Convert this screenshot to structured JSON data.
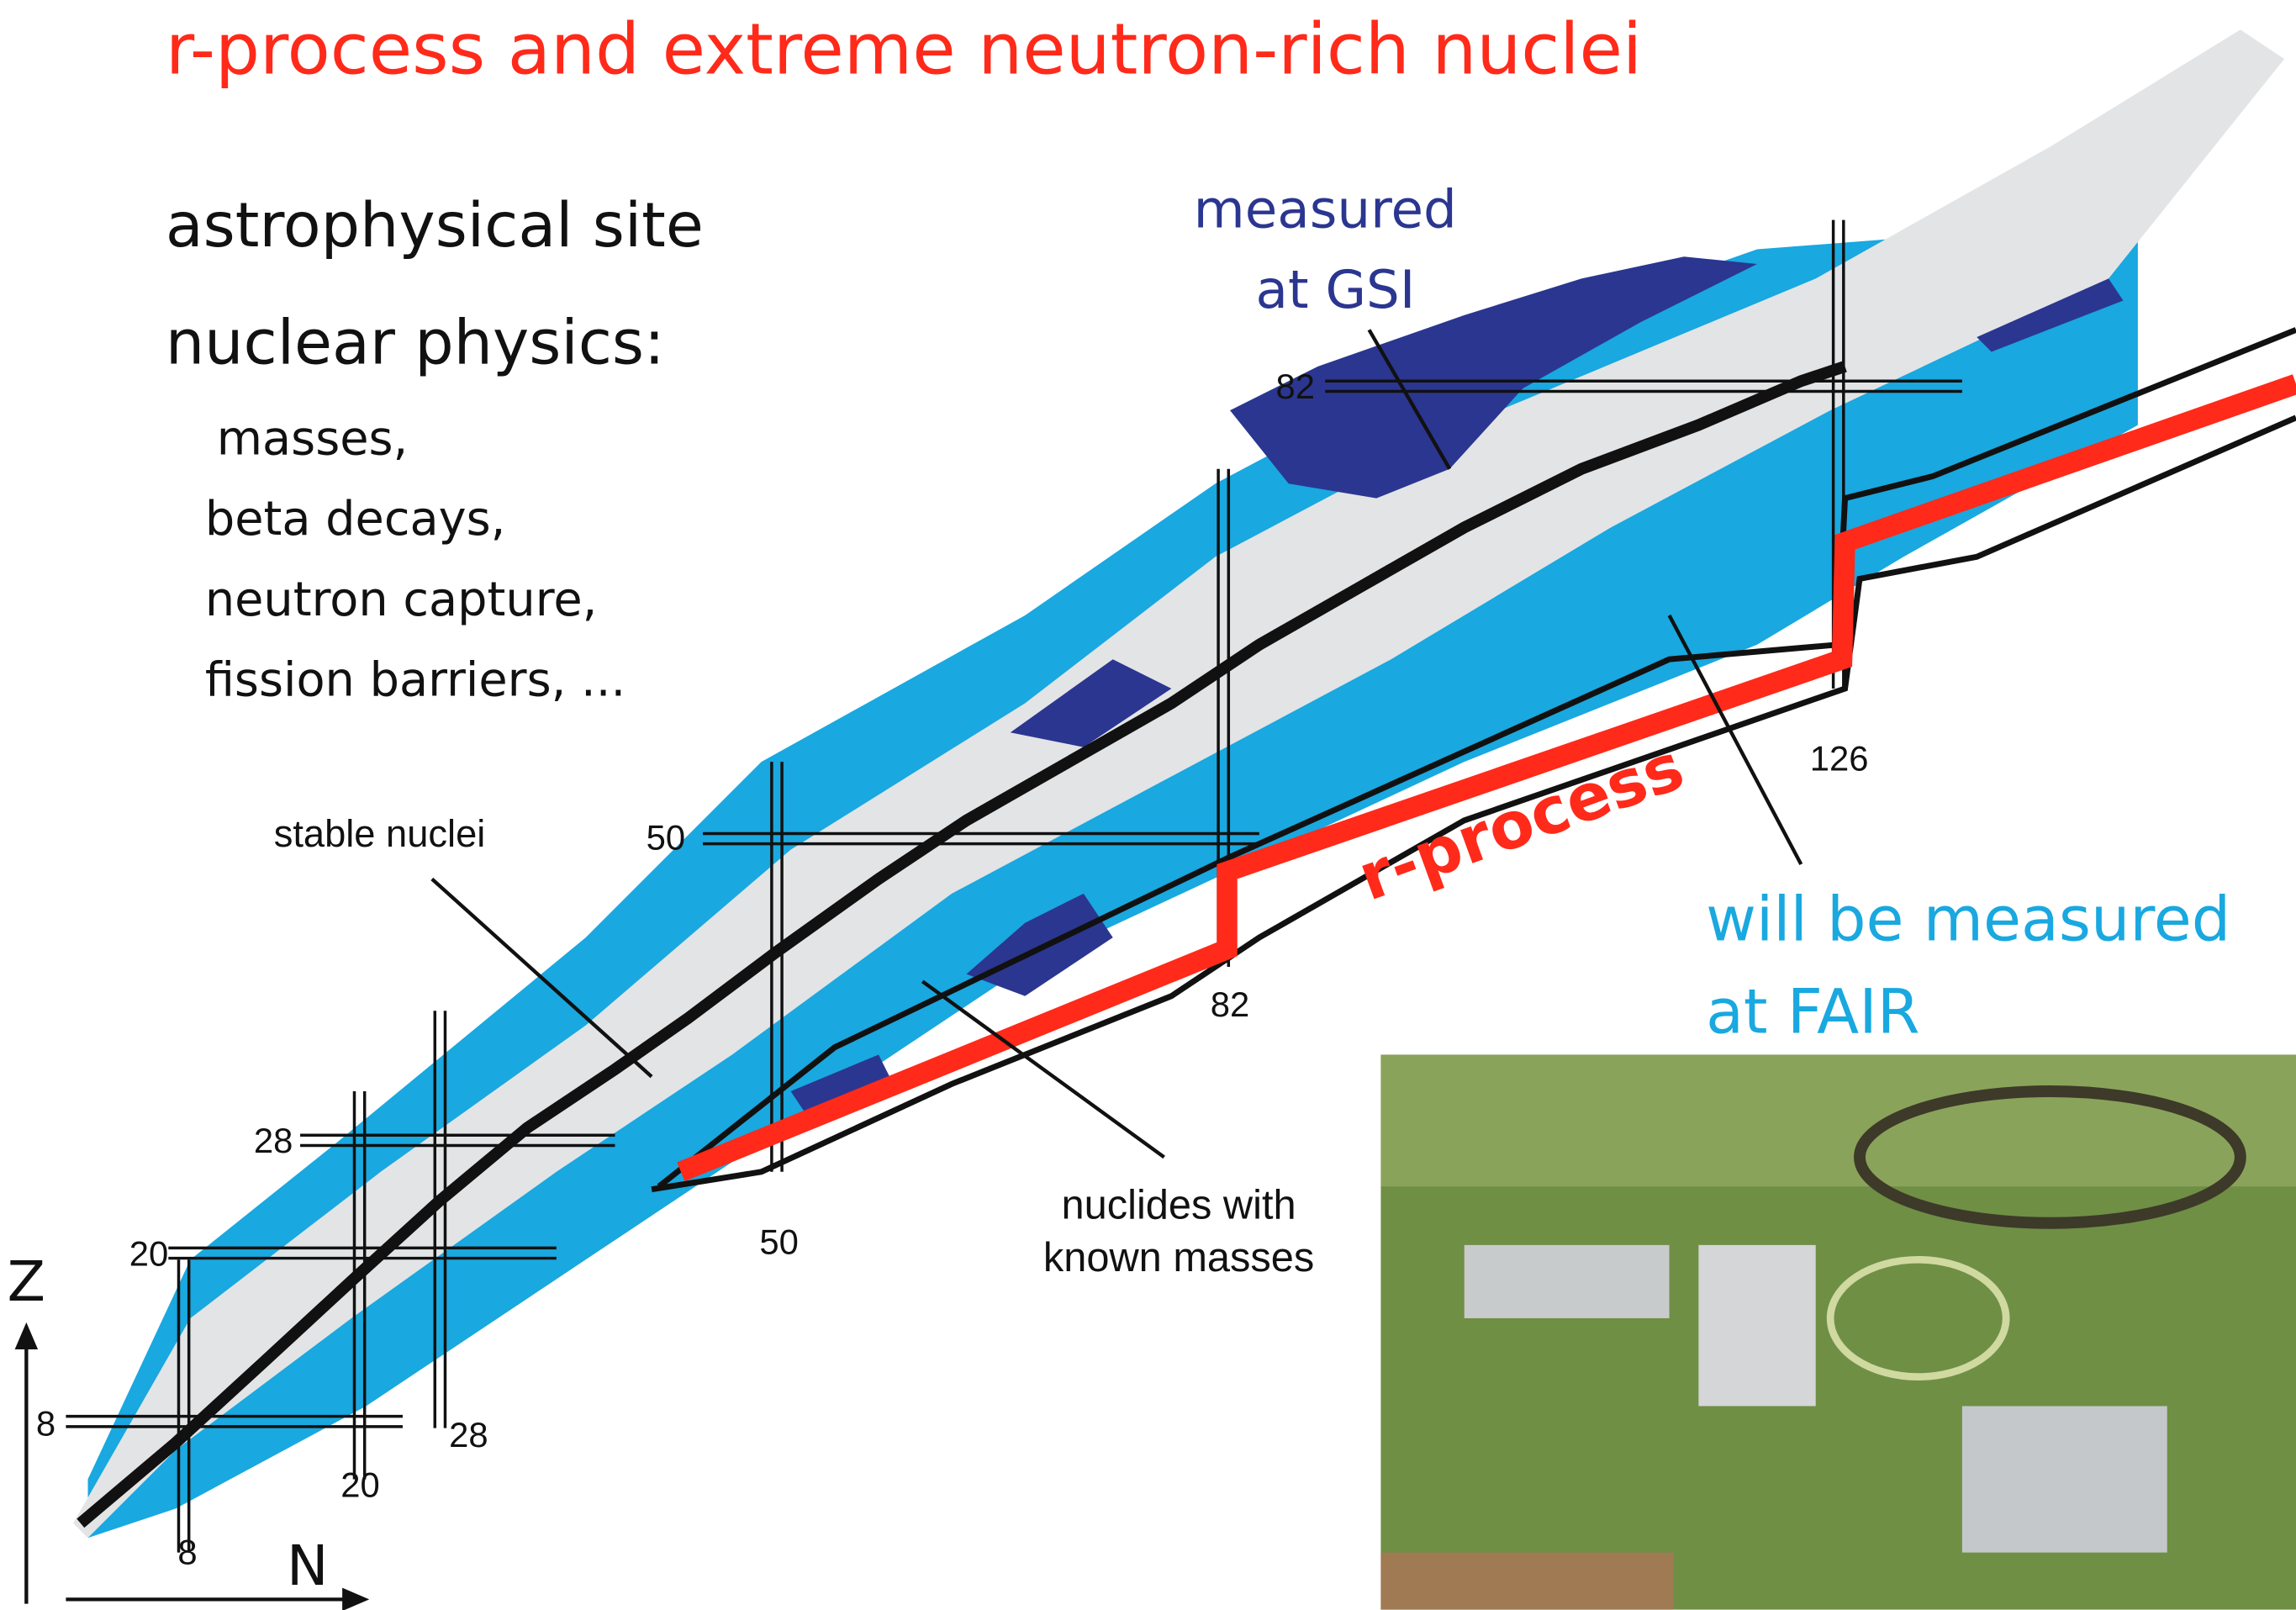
{
  "title": "r-process and extreme neutron-rich nuclei",
  "bullets": {
    "heading1": "astrophysical site",
    "heading2": "nuclear physics:",
    "items": [
      "masses,",
      "beta decays,",
      "neutron capture,",
      "fission barriers, ..."
    ]
  },
  "labels": {
    "measured_gsi": [
      "measured",
      "at GSI"
    ],
    "fair": [
      "will be measured",
      "at FAIR"
    ],
    "stable": "stable nuclei",
    "known": [
      "nuclides with",
      "known masses"
    ],
    "rprocess": "r-process"
  },
  "magic_numbers": {
    "n": [
      "8",
      "20",
      "28",
      "50",
      "82",
      "126"
    ],
    "z": [
      "8",
      "20",
      "28",
      "50",
      "82"
    ]
  },
  "axes": {
    "z": "Z",
    "n": "N"
  }
}
